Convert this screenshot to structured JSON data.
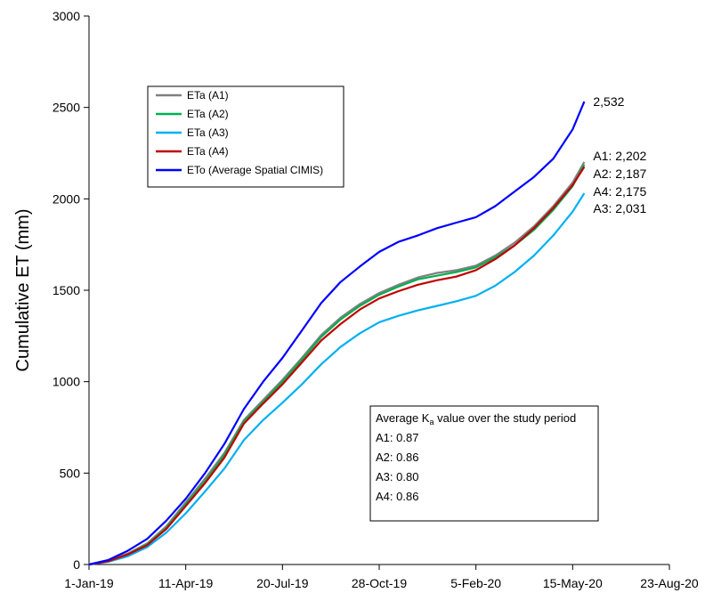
{
  "chart_data": {
    "type": "line",
    "title": "",
    "xlabel": "",
    "ylabel": "Cumulative ET (mm)",
    "xlim": [
      "2019-01-01",
      "2020-08-23"
    ],
    "ylim": [
      0,
      3000
    ],
    "x_ticks": [
      "1-Jan-19",
      "11-Apr-19",
      "20-Jul-19",
      "28-Oct-19",
      "5-Feb-20",
      "15-May-20",
      "23-Aug-20"
    ],
    "y_ticks": [
      "0",
      "500",
      "1000",
      "1500",
      "2000",
      "2500",
      "3000"
    ],
    "grid": false,
    "legend_position": "upper-left",
    "series": [
      {
        "name": "ETa (A1)",
        "color": "#808080",
        "x": [
          "2019-01-01",
          "2019-01-21",
          "2019-02-10",
          "2019-03-02",
          "2019-03-22",
          "2019-04-11",
          "2019-05-01",
          "2019-05-21",
          "2019-06-10",
          "2019-06-30",
          "2019-07-20",
          "2019-08-09",
          "2019-08-29",
          "2019-09-18",
          "2019-10-08",
          "2019-10-28",
          "2019-11-17",
          "2019-12-07",
          "2019-12-27",
          "2020-01-16",
          "2020-02-05",
          "2020-02-25",
          "2020-03-16",
          "2020-04-05",
          "2020-04-25",
          "2020-05-15",
          "2020-05-27"
        ],
        "y": [
          0,
          20,
          60,
          115,
          210,
          340,
          470,
          610,
          790,
          900,
          1010,
          1130,
          1255,
          1350,
          1425,
          1485,
          1530,
          1570,
          1595,
          1610,
          1635,
          1690,
          1760,
          1850,
          1960,
          2090,
          2202
        ]
      },
      {
        "name": "ETa (A2)",
        "color": "#00B050",
        "x": [
          "2019-01-01",
          "2019-01-21",
          "2019-02-10",
          "2019-03-02",
          "2019-03-22",
          "2019-04-11",
          "2019-05-01",
          "2019-05-21",
          "2019-06-10",
          "2019-06-30",
          "2019-07-20",
          "2019-08-09",
          "2019-08-29",
          "2019-09-18",
          "2019-10-08",
          "2019-10-28",
          "2019-11-17",
          "2019-12-07",
          "2019-12-27",
          "2020-01-16",
          "2020-02-05",
          "2020-02-25",
          "2020-03-16",
          "2020-04-05",
          "2020-04-25",
          "2020-05-15",
          "2020-05-27"
        ],
        "y": [
          0,
          20,
          55,
          110,
          200,
          330,
          455,
          600,
          780,
          890,
          1000,
          1120,
          1245,
          1340,
          1415,
          1475,
          1520,
          1560,
          1580,
          1600,
          1625,
          1680,
          1745,
          1830,
          1940,
          2070,
          2187
        ]
      },
      {
        "name": "ETa (A3)",
        "color": "#00B0F0",
        "x": [
          "2019-01-01",
          "2019-01-21",
          "2019-02-10",
          "2019-03-02",
          "2019-03-22",
          "2019-04-11",
          "2019-05-01",
          "2019-05-21",
          "2019-06-10",
          "2019-06-30",
          "2019-07-20",
          "2019-08-09",
          "2019-08-29",
          "2019-09-18",
          "2019-10-08",
          "2019-10-28",
          "2019-11-17",
          "2019-12-07",
          "2019-12-27",
          "2020-01-16",
          "2020-02-05",
          "2020-02-25",
          "2020-03-16",
          "2020-04-05",
          "2020-04-25",
          "2020-05-15",
          "2020-05-27"
        ],
        "y": [
          0,
          15,
          45,
          95,
          175,
          280,
          400,
          525,
          680,
          790,
          885,
          985,
          1095,
          1190,
          1265,
          1325,
          1360,
          1390,
          1415,
          1440,
          1470,
          1525,
          1600,
          1690,
          1800,
          1930,
          2031
        ]
      },
      {
        "name": "ETa (A4)",
        "color": "#C00000",
        "x": [
          "2019-01-01",
          "2019-01-21",
          "2019-02-10",
          "2019-03-02",
          "2019-03-22",
          "2019-04-11",
          "2019-05-01",
          "2019-05-21",
          "2019-06-10",
          "2019-06-30",
          "2019-07-20",
          "2019-08-09",
          "2019-08-29",
          "2019-09-18",
          "2019-10-08",
          "2019-10-28",
          "2019-11-17",
          "2019-12-07",
          "2019-12-27",
          "2020-01-16",
          "2020-02-05",
          "2020-02-25",
          "2020-03-16",
          "2020-04-05",
          "2020-04-25",
          "2020-05-15",
          "2020-05-27"
        ],
        "y": [
          0,
          18,
          55,
          105,
          195,
          320,
          445,
          585,
          770,
          880,
          985,
          1105,
          1225,
          1315,
          1395,
          1455,
          1495,
          1530,
          1555,
          1575,
          1610,
          1670,
          1745,
          1840,
          1950,
          2075,
          2175
        ]
      },
      {
        "name": "ETo (Average Spatial CIMIS)",
        "color": "#0000FF",
        "x": [
          "2019-01-01",
          "2019-01-21",
          "2019-02-10",
          "2019-03-02",
          "2019-03-22",
          "2019-04-11",
          "2019-05-01",
          "2019-05-21",
          "2019-06-10",
          "2019-06-30",
          "2019-07-20",
          "2019-08-09",
          "2019-08-29",
          "2019-09-18",
          "2019-10-08",
          "2019-10-28",
          "2019-11-17",
          "2019-12-07",
          "2019-12-27",
          "2020-01-16",
          "2020-02-05",
          "2020-02-25",
          "2020-03-16",
          "2020-04-05",
          "2020-04-25",
          "2020-05-15",
          "2020-05-27"
        ],
        "y": [
          0,
          25,
          75,
          140,
          240,
          360,
          500,
          660,
          850,
          1000,
          1130,
          1280,
          1430,
          1545,
          1630,
          1710,
          1765,
          1800,
          1840,
          1870,
          1900,
          1960,
          2040,
          2120,
          2220,
          2380,
          2532
        ]
      }
    ],
    "end_labels": [
      {
        "text": "2,532",
        "y": 2532
      },
      {
        "text": "A1: 2,202",
        "y": 2202
      },
      {
        "text": "A2: 2,187",
        "y": 2187
      },
      {
        "text": "A4: 2,175",
        "y": 2175
      },
      {
        "text": "A3: 2,031",
        "y": 2031
      }
    ],
    "annotation": {
      "title_prefix": "Average K",
      "title_subscript": "a",
      "title_suffix": " value over the study period",
      "lines": [
        "A1: 0.87",
        "A2: 0.86",
        "A3: 0.80",
        "A4: 0.86"
      ]
    }
  }
}
